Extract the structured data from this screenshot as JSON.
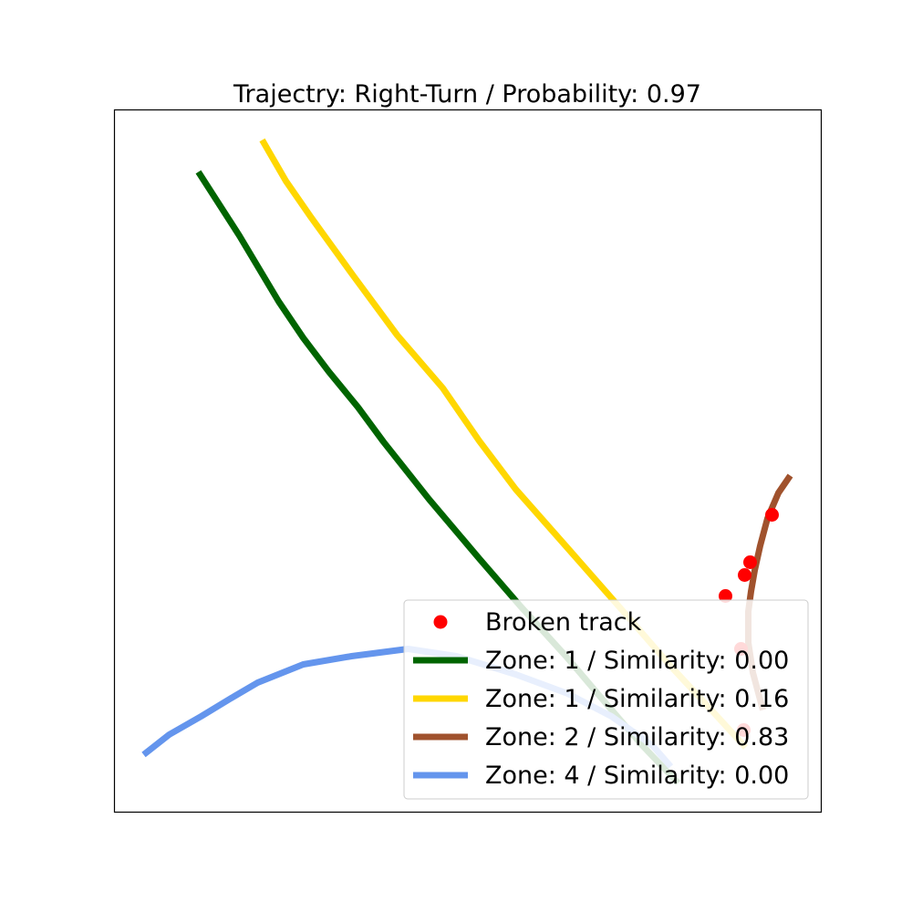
{
  "chart_data": {
    "type": "line",
    "title": "Trajectry: Right-Turn / Probability: 0.97",
    "xlabel": "",
    "ylabel": "",
    "xlim": [
      0,
      775
    ],
    "ylim": [
      770,
      0
    ],
    "axis_ticks": "none",
    "grid": false,
    "legend_position": "lower-right",
    "scatter": {
      "name": "Broken track",
      "color": "#ff0000",
      "points": [
        [
          690,
          90
        ],
        [
          687,
          179
        ],
        [
          670,
          237
        ],
        [
          691,
          260
        ],
        [
          697,
          274
        ],
        [
          721,
          326
        ]
      ]
    },
    "series": [
      {
        "name": "Zone: 1 / Similarity: 0.00",
        "color": "#006400",
        "points": [
          [
            92,
            702
          ],
          [
            137,
            632
          ],
          [
            180,
            560
          ],
          [
            207,
            520
          ],
          [
            235,
            483
          ],
          [
            267,
            444
          ],
          [
            295,
            406
          ],
          [
            345,
            343
          ],
          [
            400,
            278
          ],
          [
            445,
            226
          ],
          [
            495,
            171
          ],
          [
            540,
            118
          ],
          [
            578,
            74
          ],
          [
            618,
            32
          ]
        ]
      },
      {
        "name": "Zone: 1 / Similarity: 0.16",
        "color": "#ffd700",
        "points": [
          [
            162,
            737
          ],
          [
            188,
            692
          ],
          [
            215,
            653
          ],
          [
            262,
            588
          ],
          [
            310,
            523
          ],
          [
            360,
            465
          ],
          [
            400,
            407
          ],
          [
            440,
            354
          ],
          [
            500,
            286
          ],
          [
            558,
            220
          ],
          [
            610,
            160
          ],
          [
            660,
            106
          ],
          [
            692,
            71
          ]
        ]
      },
      {
        "name": "Zone: 2 / Similarity: 0.83",
        "color": "#a0522d",
        "points": [
          [
            711,
            112
          ],
          [
            700,
            153
          ],
          [
            695,
            186
          ],
          [
            695,
            220
          ],
          [
            698,
            242
          ],
          [
            702,
            265
          ],
          [
            708,
            292
          ],
          [
            716,
            322
          ],
          [
            728,
            350
          ],
          [
            741,
            369
          ]
        ]
      },
      {
        "name": "Zone: 4 / Similarity: 0.00",
        "color": "#6495ed",
        "points": [
          [
            32,
            63
          ],
          [
            60,
            85
          ],
          [
            95,
            105
          ],
          [
            128,
            125
          ],
          [
            157,
            142
          ],
          [
            207,
            162
          ],
          [
            260,
            171
          ],
          [
            322,
            179
          ],
          [
            375,
            171
          ],
          [
            440,
            151
          ],
          [
            497,
            130
          ],
          [
            545,
            105
          ],
          [
            590,
            73
          ],
          [
            610,
            50
          ]
        ]
      }
    ]
  }
}
